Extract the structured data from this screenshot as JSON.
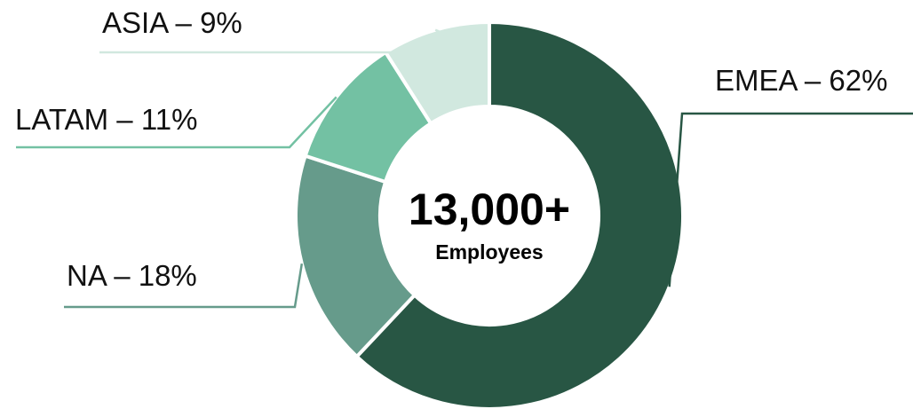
{
  "chart_data": {
    "type": "pie",
    "style": "donut",
    "slices": [
      {
        "label": "EMEA",
        "value": 62,
        "display": "EMEA – 62%",
        "color": "#285644"
      },
      {
        "label": "NA",
        "value": 18,
        "display": "NA – 18%",
        "color": "#669b8b"
      },
      {
        "label": "LATAM",
        "value": 11,
        "display": "LATAM – 11%",
        "color": "#73c1a3"
      },
      {
        "label": "ASIA",
        "value": 9,
        "display": "ASIA – 9%",
        "color": "#d1e8df"
      }
    ],
    "center": {
      "value": "13,000+",
      "label": "Employees"
    }
  }
}
